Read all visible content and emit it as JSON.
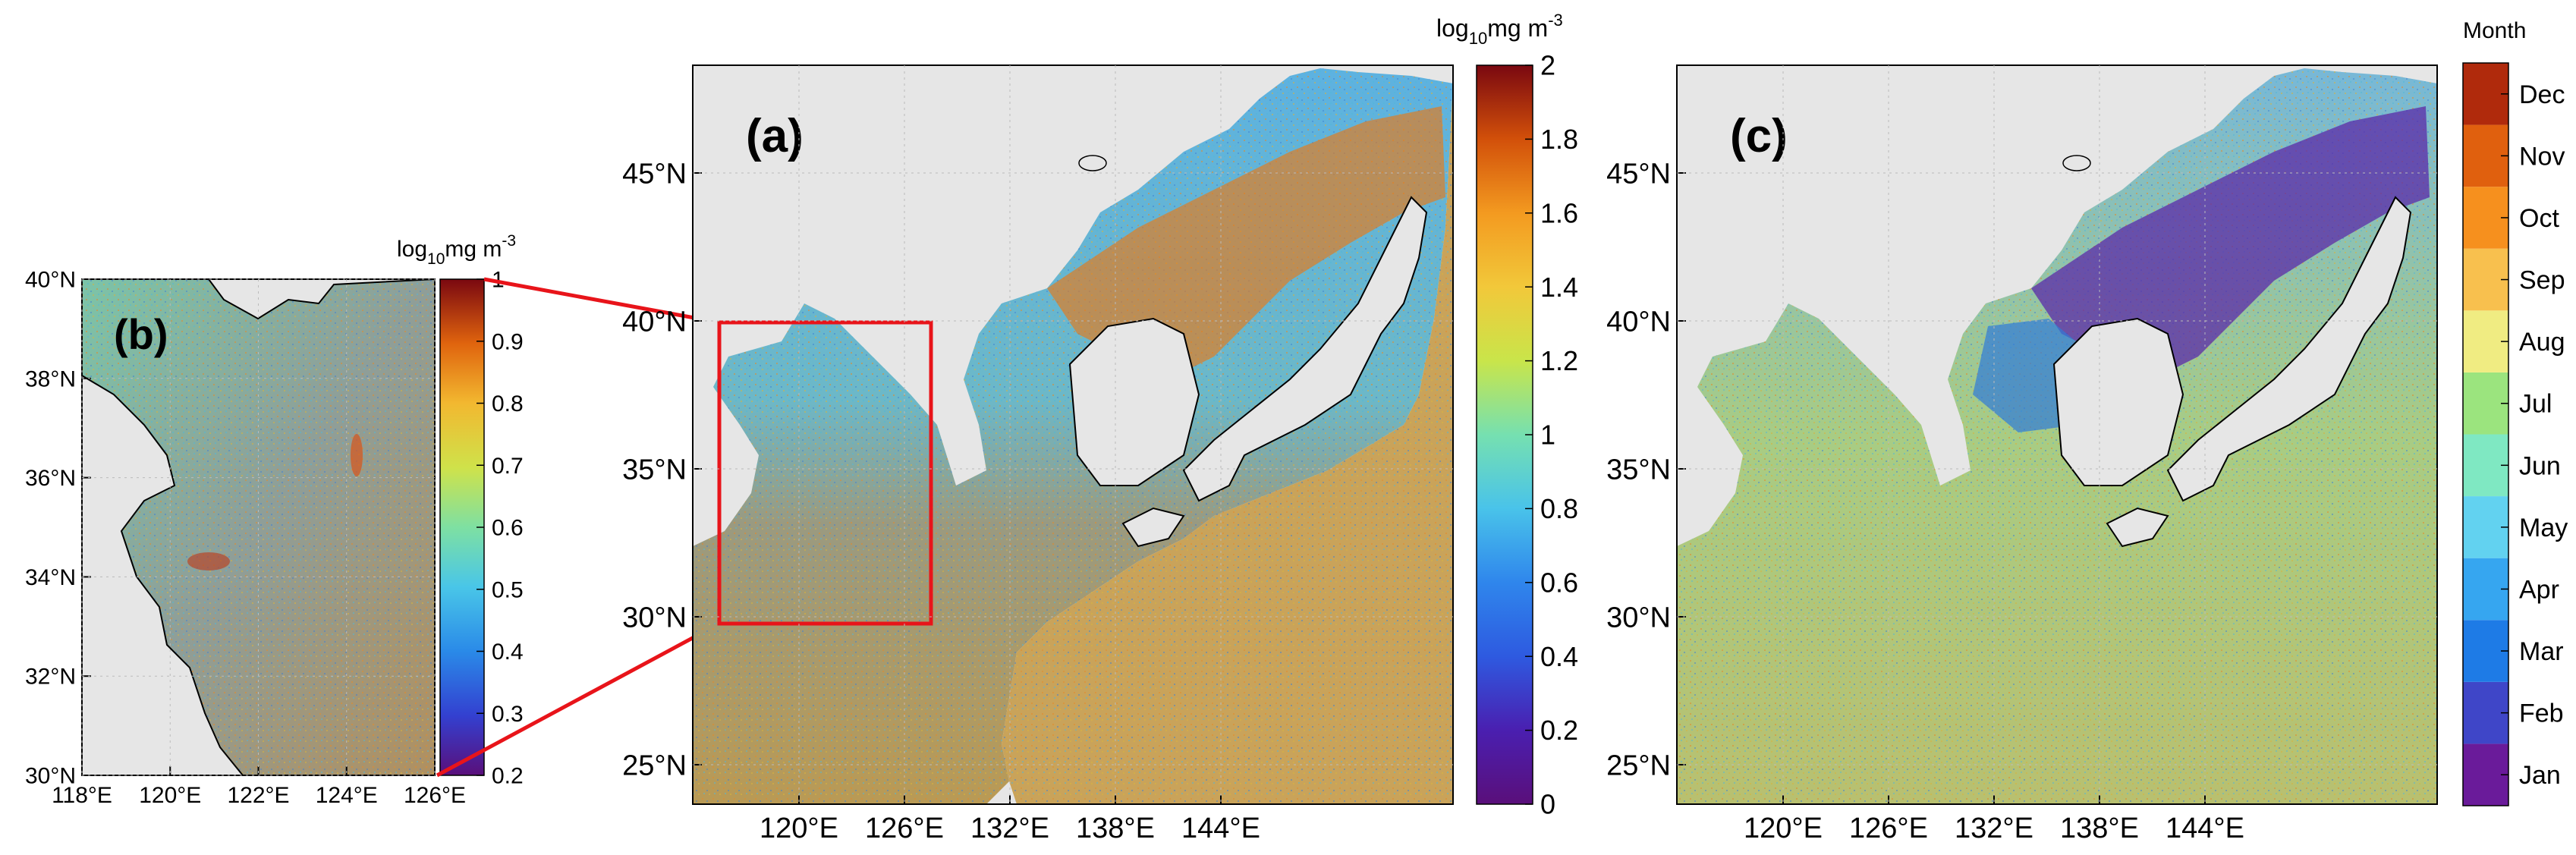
{
  "panels": {
    "b": {
      "label": "(b)",
      "lon_ticks": [
        "118°E",
        "120°E",
        "122°E",
        "124°E",
        "126°E"
      ],
      "lat_ticks": [
        "30°N",
        "32°N",
        "34°N",
        "36°N",
        "38°N",
        "40°N"
      ],
      "colorbar": {
        "unit_base": "log",
        "unit_sub": "10",
        "unit_rest": "mg m",
        "unit_sup": "-3",
        "ticks": [
          "0.2",
          "0.3",
          "0.4",
          "0.5",
          "0.6",
          "0.7",
          "0.8",
          "0.9",
          "1"
        ],
        "range": [
          0.2,
          1.0
        ]
      }
    },
    "a": {
      "label": "(a)",
      "lon_ticks": [
        "120°E",
        "126°E",
        "132°E",
        "138°E",
        "144°E"
      ],
      "lat_ticks": [
        "25°N",
        "30°N",
        "35°N",
        "40°N",
        "45°N"
      ],
      "colorbar": {
        "unit_base": "log",
        "unit_sub": "10",
        "unit_rest": "mg m",
        "unit_sup": "-3",
        "ticks": [
          "0",
          "0.2",
          "0.4",
          "0.6",
          "0.8",
          "1",
          "1.2",
          "1.4",
          "1.6",
          "1.8",
          "2"
        ],
        "range": [
          0,
          2
        ]
      },
      "zoom_box": {
        "lon": [
          118,
          126
        ],
        "lat": [
          30,
          40
        ]
      }
    },
    "c": {
      "label": "(c)",
      "lon_ticks": [
        "120°E",
        "126°E",
        "132°E",
        "138°E",
        "144°E"
      ],
      "lat_ticks": [
        "25°N",
        "30°N",
        "35°N",
        "40°N",
        "45°N"
      ],
      "colorbar": {
        "title": "Month",
        "ticks": [
          "Jan",
          "Feb",
          "Mar",
          "Apr",
          "May",
          "Jun",
          "Jul",
          "Aug",
          "Sep",
          "Oct",
          "Nov",
          "Dec"
        ]
      }
    }
  },
  "colors": {
    "land": "#e6e6e6",
    "zoom_box": "#e8141a",
    "viridis_like": [
      "#5c0f8a",
      "#3c3cd6",
      "#1f8fe8",
      "#48c9e8",
      "#7ee08a",
      "#c9e24a",
      "#f2c23a",
      "#f08a1c",
      "#d44a0a",
      "#8c0a0a"
    ],
    "months": [
      "#6a1b9a",
      "#3f46c8",
      "#1e7be6",
      "#36a6f0",
      "#62d2f0",
      "#7fe8c2",
      "#9be47e",
      "#f0ec82",
      "#f8c04e",
      "#f6901e",
      "#e0600e",
      "#b02a0c"
    ]
  }
}
